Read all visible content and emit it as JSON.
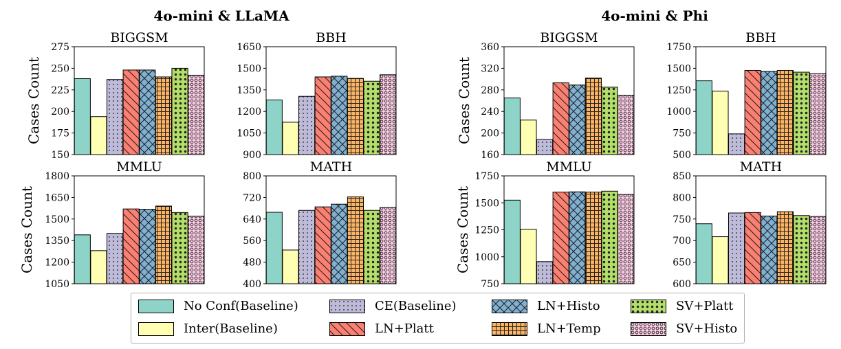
{
  "group_titles": [
    "4o-mini & LLaMA",
    "4o-mini & Phi"
  ],
  "legend": [
    {
      "name": "No Conf(Baseline)",
      "color": "#8dd3c7",
      "pattern": "none"
    },
    {
      "name": "Inter(Baseline)",
      "color": "#ffffb3",
      "pattern": "none"
    },
    {
      "name": "CE(Baseline)",
      "color": "#bebada",
      "pattern": "dots"
    },
    {
      "name": "LN+Platt",
      "color": "#fb8072",
      "pattern": "backslash"
    },
    {
      "name": "LN+Histo",
      "color": "#80b1d3",
      "pattern": "crosshatch"
    },
    {
      "name": "LN+Temp",
      "color": "#fdb462",
      "pattern": "grid"
    },
    {
      "name": "SV+Platt",
      "color": "#b3de69",
      "pattern": "bigdots"
    },
    {
      "name": "SV+Histo",
      "color": "#fccde5",
      "pattern": "circles"
    }
  ],
  "chart_data": [
    {
      "type": "bar",
      "group": "4o-mini & LLaMA",
      "title": "BIGGSM",
      "ylabel": "Cases Count",
      "ylim": [
        150,
        275
      ],
      "yticks": [
        "150",
        "175",
        "200",
        "225",
        "250",
        "275"
      ],
      "values": [
        238,
        194,
        237,
        248,
        248,
        240,
        250,
        242
      ]
    },
    {
      "type": "bar",
      "group": "4o-mini & LLaMA",
      "title": "BBH",
      "ylabel": "",
      "ylim": [
        900,
        1650
      ],
      "yticks": [
        "900",
        "1050",
        "1200",
        "1350",
        "1500",
        "1650"
      ],
      "values": [
        1280,
        1125,
        1305,
        1440,
        1445,
        1430,
        1410,
        1455
      ]
    },
    {
      "type": "bar",
      "group": "4o-mini & LLaMA",
      "title": "MMLU",
      "ylabel": "Cases Count",
      "ylim": [
        1050,
        1800
      ],
      "yticks": [
        "1050",
        "1200",
        "1350",
        "1500",
        "1650",
        "1800"
      ],
      "values": [
        1390,
        1280,
        1400,
        1570,
        1568,
        1590,
        1545,
        1520
      ]
    },
    {
      "type": "bar",
      "group": "4o-mini & LLaMA",
      "title": "MATH",
      "ylabel": "",
      "ylim": [
        400,
        800
      ],
      "yticks": [
        "400",
        "480",
        "560",
        "640",
        "720",
        "800"
      ],
      "values": [
        665,
        525,
        672,
        685,
        695,
        722,
        672,
        683
      ]
    },
    {
      "type": "bar",
      "group": "4o-mini & Phi",
      "title": "BIGGSM",
      "ylabel": "Cases Count",
      "ylim": [
        160,
        360
      ],
      "yticks": [
        "160",
        "200",
        "240",
        "280",
        "320",
        "360"
      ],
      "values": [
        265,
        224,
        188,
        293,
        289,
        302,
        285,
        270
      ]
    },
    {
      "type": "bar",
      "group": "4o-mini & Phi",
      "title": "BBH",
      "ylabel": "",
      "ylim": [
        500,
        1750
      ],
      "yticks": [
        "500",
        "750",
        "1000",
        "1250",
        "1500",
        "1750"
      ],
      "values": [
        1355,
        1235,
        740,
        1475,
        1465,
        1475,
        1455,
        1440
      ]
    },
    {
      "type": "bar",
      "group": "4o-mini & Phi",
      "title": "MMLU",
      "ylabel": "Cases Count",
      "ylim": [
        750,
        1750
      ],
      "yticks": [
        "750",
        "1000",
        "1250",
        "1500",
        "1750"
      ],
      "values": [
        1525,
        1255,
        955,
        1600,
        1602,
        1600,
        1608,
        1578
      ]
    },
    {
      "type": "bar",
      "group": "4o-mini & Phi",
      "title": "MATH",
      "ylabel": "",
      "ylim": [
        600,
        850
      ],
      "yticks": [
        "600",
        "650",
        "700",
        "750",
        "800",
        "850"
      ],
      "values": [
        739,
        709,
        764,
        765,
        757,
        767,
        758,
        756
      ]
    }
  ]
}
